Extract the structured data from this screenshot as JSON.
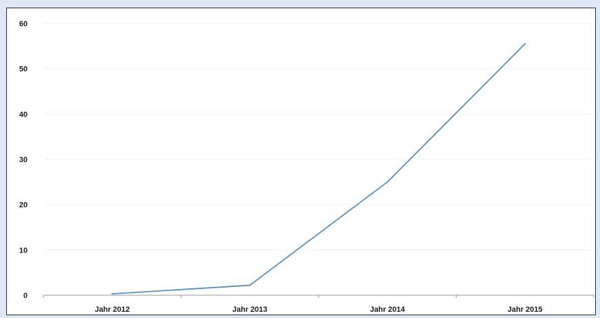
{
  "colors": {
    "page_background": "#dfe9f5",
    "plot_background": "#ffffff",
    "line": "#5b8fc7",
    "axis": "#9a9a9a",
    "gridline": "#f2f2f2"
  },
  "chart_data": {
    "type": "line",
    "title": "",
    "xlabel": "",
    "ylabel": "",
    "categories": [
      "Jahr 2012",
      "Jahr 2013",
      "Jahr 2014",
      "Jahr 2015"
    ],
    "series": [
      {
        "name": "",
        "values": [
          0.3,
          2.2,
          25,
          55.5
        ]
      }
    ],
    "ylim": [
      0,
      60
    ],
    "yticks": [
      0,
      10,
      20,
      30,
      40,
      50,
      60
    ],
    "grid": true,
    "legend": "none"
  }
}
